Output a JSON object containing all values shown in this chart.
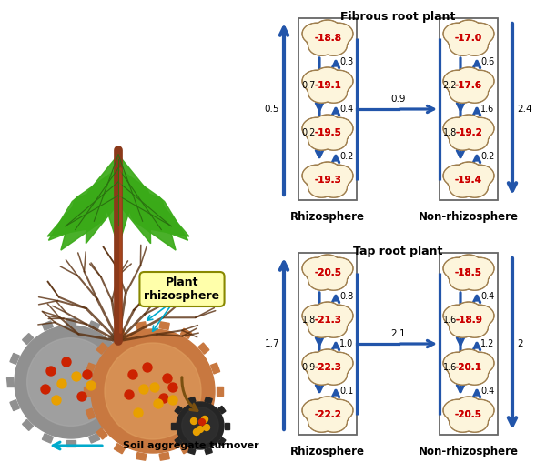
{
  "bg_color": "#ffffff",
  "fibrous_title": "Fibrous root plant",
  "tap_title": "Tap root plant",
  "rhizo_label": "Rhizosphere",
  "non_rhizo_label": "Non-rhizosphere",
  "fibrous_rhizo_nodes": [
    "-18.8",
    "-19.1",
    "-19.5",
    "-19.3"
  ],
  "fibrous_nonrhizo_nodes": [
    "-17.0",
    "-17.6",
    "-19.2",
    "-19.4"
  ],
  "tap_rhizo_nodes": [
    "-20.5",
    "-21.3",
    "-22.3",
    "-22.2"
  ],
  "tap_nonrhizo_nodes": [
    "-18.5",
    "-18.9",
    "-20.1",
    "-20.5"
  ],
  "fibrous_rhizo_inner_up": [
    "0.3",
    "0.4",
    "0.2"
  ],
  "fibrous_rhizo_inner_down": [
    "0.7",
    "0.2"
  ],
  "fibrous_rhizo_outer": "0.5",
  "fibrous_nonrhizo_inner_up": [
    "0.6",
    "1.6",
    "0.2"
  ],
  "fibrous_nonrhizo_inner_down": [
    "2.2",
    "1.8"
  ],
  "fibrous_nonrhizo_outer": "2.4",
  "fibrous_cross": "0.9",
  "tap_rhizo_inner_up": [
    "0.8",
    "1.0",
    "0.1"
  ],
  "tap_rhizo_inner_down": [
    "1.8",
    "0.9"
  ],
  "tap_rhizo_outer": "1.7",
  "tap_nonrhizo_inner_up": [
    "0.4",
    "1.2",
    "0.4"
  ],
  "tap_nonrhizo_inner_down": [
    "1.6",
    "1.6"
  ],
  "tap_nonrhizo_outer": "2",
  "tap_cross": "2.1",
  "node_face_color": "#fdf5dc",
  "node_edge_color": "#a08050",
  "red_text_color": "#cc0000",
  "arrow_color": "#2255aa",
  "plant_label": "Plant\nrhizosphere",
  "soil_label": "Soil aggregate turnover"
}
